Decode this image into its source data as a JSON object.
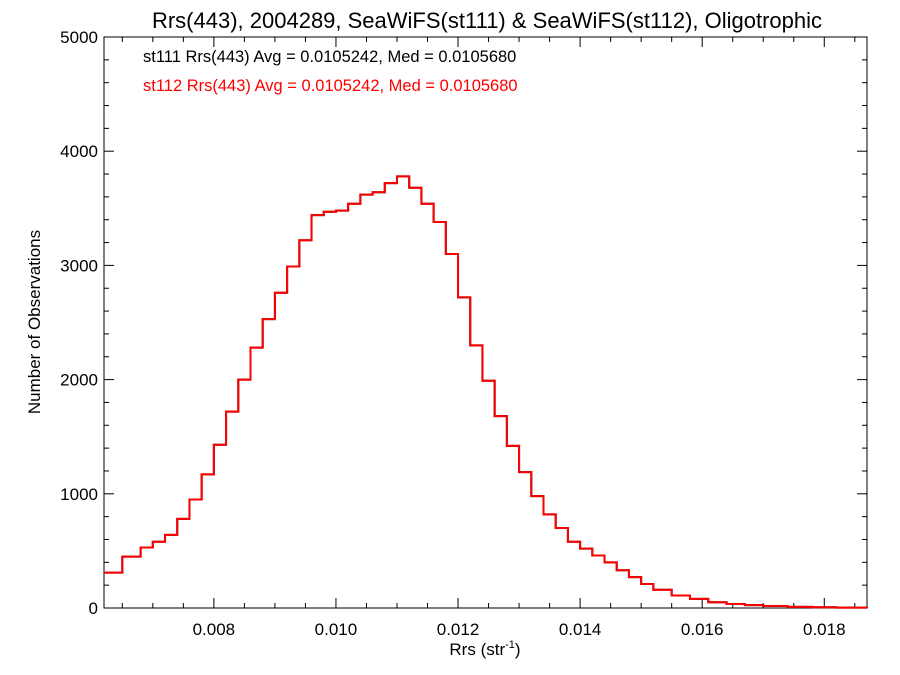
{
  "chart_data": {
    "type": "line",
    "style": "step-histogram",
    "title": "Rrs(443), 2004289, SeaWiFS(st111) & SeaWiFS(st112), Oligotrophic",
    "xlabel_main": "Rrs (str",
    "xlabel_sup": "-1",
    "xlabel_close": ")",
    "ylabel": "Number of Observations",
    "xlim": [
      0.0062,
      0.0187
    ],
    "ylim": [
      0,
      5000
    ],
    "xticks": [
      0.008,
      0.01,
      0.012,
      0.014,
      0.016,
      0.018
    ],
    "xtick_labels": [
      "0.008",
      "0.010",
      "0.012",
      "0.014",
      "0.016",
      "0.018"
    ],
    "yticks": [
      0,
      1000,
      2000,
      3000,
      4000,
      5000
    ],
    "ytick_labels": [
      "0",
      "1000",
      "2000",
      "3000",
      "4000",
      "5000"
    ],
    "grid": false,
    "annotations": [
      {
        "text": "st111 Rrs(443) Avg = 0.0105242, Med = 0.0105680",
        "color": "#000000"
      },
      {
        "text": "st112 Rrs(443) Avg = 0.0105242, Med = 0.0105680",
        "color": "#ff0000"
      }
    ],
    "series": [
      {
        "color": "#000000",
        "x": [
          0.0062,
          0.0065,
          0.0068,
          0.007,
          0.0072,
          0.0074,
          0.0076,
          0.0078,
          0.008,
          0.0082,
          0.0084,
          0.0086,
          0.0088,
          0.009,
          0.0092,
          0.0094,
          0.0096,
          0.0098,
          0.01,
          0.0102,
          0.0104,
          0.0106,
          0.0108,
          0.011,
          0.0112,
          0.0114,
          0.0116,
          0.0118,
          0.012,
          0.0122,
          0.0124,
          0.0126,
          0.0128,
          0.013,
          0.0132,
          0.0134,
          0.0136,
          0.0138,
          0.014,
          0.0142,
          0.0144,
          0.0146,
          0.0148,
          0.015,
          0.0152,
          0.0155,
          0.0158,
          0.0161,
          0.0164,
          0.0167,
          0.017,
          0.0174,
          0.0178,
          0.0182,
          0.0187
        ],
        "y": [
          310,
          450,
          530,
          580,
          640,
          780,
          950,
          1170,
          1430,
          1720,
          2000,
          2280,
          2530,
          2760,
          2990,
          3220,
          3440,
          3470,
          3480,
          3540,
          3620,
          3640,
          3720,
          3780,
          3680,
          3540,
          3380,
          3100,
          2720,
          2300,
          1990,
          1680,
          1420,
          1190,
          980,
          820,
          700,
          580,
          520,
          460,
          400,
          330,
          270,
          210,
          160,
          110,
          80,
          50,
          35,
          25,
          18,
          10,
          6,
          3,
          2
        ]
      },
      {
        "color": "#ff0000",
        "x": [
          0.0062,
          0.0065,
          0.0068,
          0.007,
          0.0072,
          0.0074,
          0.0076,
          0.0078,
          0.008,
          0.0082,
          0.0084,
          0.0086,
          0.0088,
          0.009,
          0.0092,
          0.0094,
          0.0096,
          0.0098,
          0.01,
          0.0102,
          0.0104,
          0.0106,
          0.0108,
          0.011,
          0.0112,
          0.0114,
          0.0116,
          0.0118,
          0.012,
          0.0122,
          0.0124,
          0.0126,
          0.0128,
          0.013,
          0.0132,
          0.0134,
          0.0136,
          0.0138,
          0.014,
          0.0142,
          0.0144,
          0.0146,
          0.0148,
          0.015,
          0.0152,
          0.0155,
          0.0158,
          0.0161,
          0.0164,
          0.0167,
          0.017,
          0.0174,
          0.0178,
          0.0182,
          0.0187
        ],
        "y": [
          310,
          450,
          530,
          580,
          640,
          780,
          950,
          1170,
          1430,
          1720,
          2000,
          2280,
          2530,
          2760,
          2990,
          3220,
          3440,
          3470,
          3480,
          3540,
          3620,
          3640,
          3720,
          3780,
          3680,
          3540,
          3380,
          3100,
          2720,
          2300,
          1990,
          1680,
          1420,
          1190,
          980,
          820,
          700,
          580,
          520,
          460,
          400,
          330,
          270,
          210,
          160,
          110,
          80,
          50,
          35,
          25,
          18,
          10,
          6,
          3,
          2
        ]
      }
    ]
  }
}
